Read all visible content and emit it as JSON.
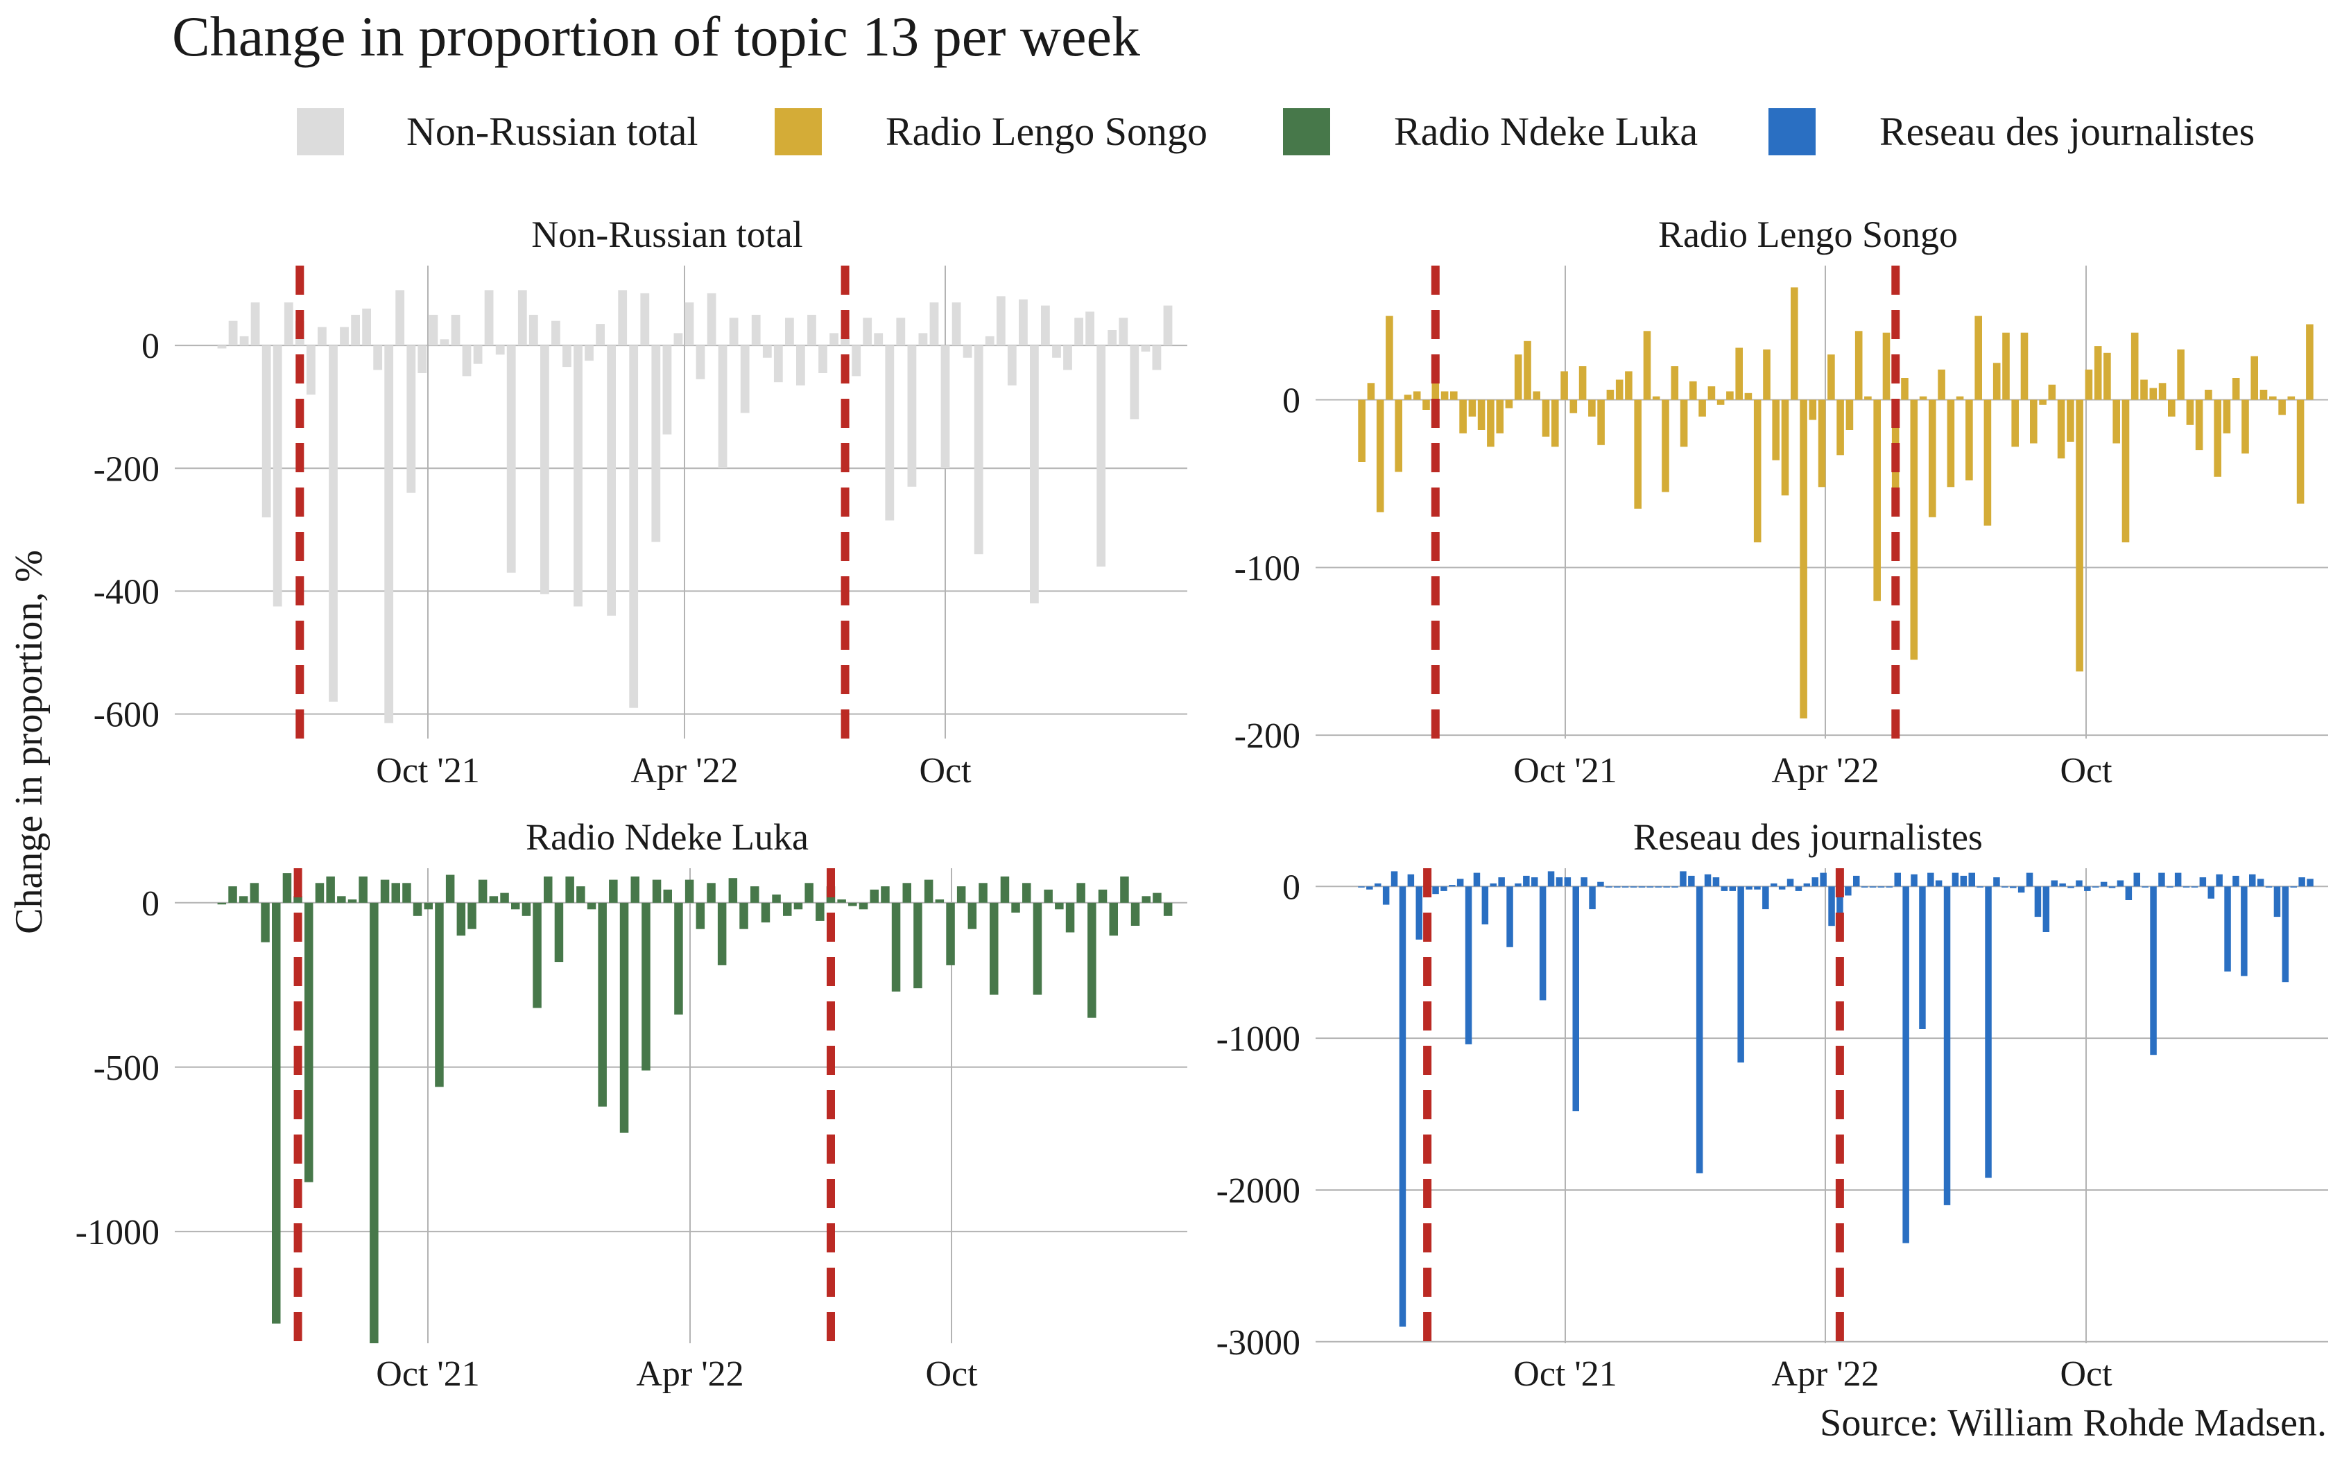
{
  "title": "Change in proportion of  topic 13 per week",
  "y_axis_label": "Change in proportion, %",
  "source": "Source: William Rohde Madsen.",
  "legend": [
    {
      "label": "Non-Russian total",
      "color": "#dcdcdc"
    },
    {
      "label": "Radio Lengo Songo",
      "color": "#d4ac37"
    },
    {
      "label": "Radio Ndeke Luka",
      "color": "#47784a"
    },
    {
      "label": "Reseau des journalistes",
      "color": "#2a6fc2"
    }
  ],
  "colors": {
    "vline": "#bb2a24",
    "grid": "#b3b3b3"
  },
  "chart_data": [
    {
      "type": "bar",
      "title": "Non-Russian total",
      "color": "#dcdcdc",
      "x_ticks": [
        "Oct '21",
        "Apr '22",
        "Oct"
      ],
      "y_ticks": [
        0,
        -200,
        -400,
        -600
      ],
      "ylim": [
        -640,
        130
      ],
      "vlines_week": [
        7,
        56
      ],
      "values": [
        -5,
        40,
        15,
        70,
        -280,
        -425,
        70,
        40,
        -80,
        30,
        -580,
        30,
        50,
        60,
        -40,
        -615,
        90,
        -240,
        -45,
        50,
        10,
        50,
        -50,
        -30,
        90,
        -15,
        -370,
        90,
        50,
        -405,
        40,
        -35,
        -425,
        -25,
        35,
        -440,
        90,
        -590,
        85,
        -320,
        -145,
        20,
        70,
        -55,
        85,
        -200,
        45,
        -110,
        50,
        -20,
        -60,
        45,
        -65,
        50,
        -45,
        20,
        15,
        -50,
        45,
        20,
        -285,
        45,
        -230,
        20,
        70,
        -200,
        70,
        -20,
        -340,
        15,
        80,
        -65,
        75,
        -420,
        65,
        -20,
        -40,
        45,
        55,
        -360,
        25,
        45,
        -120,
        -10,
        -40,
        65
      ]
    },
    {
      "type": "bar",
      "title": "Radio Lengo Songo",
      "color": "#d4ac37",
      "x_ticks": [
        "Oct '21",
        "Apr '22",
        "Oct"
      ],
      "y_ticks": [
        0,
        -100,
        -200
      ],
      "ylim": [
        -202,
        80
      ],
      "vlines_week": [
        8,
        58
      ],
      "values": [
        -37,
        10,
        -67,
        50,
        -43,
        3,
        5,
        -6,
        12,
        5,
        5,
        -20,
        -10,
        -18,
        -28,
        -20,
        -5,
        27,
        35,
        5,
        -22,
        -28,
        17,
        -8,
        20,
        -10,
        -27,
        6,
        12,
        17,
        -65,
        41,
        2,
        -55,
        20,
        -28,
        11,
        -10,
        8,
        -3,
        5,
        31,
        4,
        -85,
        30,
        -36,
        -57,
        67,
        -190,
        -12,
        -52,
        27,
        -33,
        -18,
        41,
        2,
        -120,
        40,
        -60,
        13,
        -155,
        2,
        -70,
        18,
        -52,
        2,
        -48,
        50,
        -75,
        22,
        40,
        -28,
        40,
        -26,
        -3,
        9,
        -35,
        -25,
        -162,
        18,
        32,
        28,
        -26,
        -85,
        40,
        12,
        7,
        10,
        -10,
        30,
        -15,
        -30,
        6,
        -46,
        -20,
        13,
        -32,
        26,
        6,
        2,
        -9,
        2,
        -62,
        45
      ]
    },
    {
      "type": "bar",
      "title": "Radio Ndeke Luka",
      "color": "#47784a",
      "x_ticks": [
        "Oct '21",
        "Apr '22",
        "Oct"
      ],
      "y_ticks": [
        0,
        -500,
        -1000
      ],
      "ylim": [
        -1340,
        105
      ],
      "vlines_week": [
        7,
        56
      ],
      "values": [
        -5,
        50,
        20,
        60,
        -120,
        -1280,
        90,
        20,
        -850,
        60,
        80,
        20,
        10,
        80,
        -1340,
        70,
        60,
        60,
        -40,
        -20,
        -560,
        85,
        -100,
        -80,
        70,
        20,
        30,
        -20,
        -40,
        -320,
        80,
        -180,
        80,
        50,
        -20,
        -620,
        70,
        -700,
        80,
        -510,
        70,
        40,
        -340,
        70,
        -80,
        60,
        -190,
        75,
        -80,
        50,
        -60,
        25,
        -40,
        -20,
        60,
        -55,
        50,
        10,
        -10,
        -20,
        40,
        50,
        -270,
        60,
        -260,
        70,
        10,
        -190,
        50,
        -80,
        60,
        -280,
        80,
        -30,
        60,
        -280,
        40,
        -20,
        -90,
        60,
        -350,
        40,
        -100,
        80,
        -70,
        20,
        30,
        -40
      ]
    },
    {
      "type": "bar",
      "title": "Reseau des journalistes",
      "color": "#2a6fc2",
      "x_ticks": [
        "Oct '21",
        "Apr '22",
        "Oct"
      ],
      "y_ticks": [
        0,
        -1000,
        -2000,
        -3000
      ],
      "ylim": [
        -3010,
        120
      ],
      "vlines_week": [
        8,
        58
      ],
      "values": [
        0,
        -20,
        20,
        -120,
        100,
        -2900,
        80,
        -350,
        90,
        -50,
        -30,
        10,
        50,
        -1040,
        90,
        -250,
        20,
        60,
        -400,
        20,
        70,
        60,
        -750,
        100,
        60,
        60,
        -1480,
        60,
        -150,
        30,
        0,
        0,
        0,
        0,
        0,
        0,
        0,
        0,
        0,
        100,
        70,
        -1890,
        80,
        60,
        -30,
        -30,
        -1160,
        -20,
        -20,
        -150,
        20,
        -20,
        50,
        -30,
        20,
        60,
        90,
        -260,
        -330,
        -60,
        70,
        0,
        0,
        0,
        0,
        90,
        -2350,
        80,
        -940,
        90,
        40,
        -2100,
        90,
        70,
        90,
        0,
        -1920,
        60,
        0,
        -10,
        -40,
        90,
        -200,
        -300,
        40,
        20,
        -10,
        40,
        -30,
        0,
        30,
        -10,
        40,
        -90,
        90,
        0,
        -1110,
        90,
        0,
        90,
        0,
        0,
        60,
        -80,
        80,
        -560,
        70,
        -590,
        80,
        50,
        0,
        -200,
        -630,
        0,
        60,
        50
      ]
    }
  ]
}
